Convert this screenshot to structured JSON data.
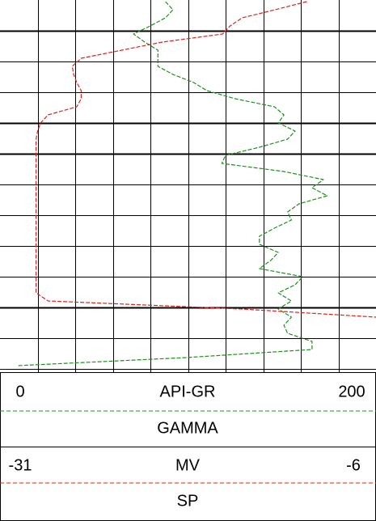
{
  "chart_data": {
    "type": "well-log",
    "series": [
      {
        "name": "GAMMA",
        "unit": "API-GR",
        "xlim": [
          0,
          200
        ],
        "color": "#1f8f1f",
        "values": [
          88,
          92,
          88,
          80,
          71,
          77,
          84,
          84,
          84,
          92,
          103,
          110,
          125,
          146,
          151,
          148,
          157,
          153,
          138,
          120,
          118,
          151,
          172,
          166,
          174,
          159,
          153,
          155,
          146,
          138,
          138,
          148,
          144,
          138,
          161,
          157,
          148,
          155,
          148,
          155,
          151,
          153,
          166,
          166,
          99,
          9
        ]
      },
      {
        "name": "SP",
        "unit": "MV",
        "xlim": [
          -31,
          -6
        ],
        "color": "#e02020",
        "values": [
          -10.6,
          -12.7,
          -14.9,
          -15.7,
          -16.2,
          -20.2,
          -22.9,
          -25.6,
          -26.2,
          -26.1,
          -25.9,
          -25.6,
          -25.6,
          -25.9,
          -27.8,
          -28.3,
          -28.5,
          -28.6,
          -28.6,
          -28.6,
          -28.6,
          -28.6,
          -28.6,
          -28.6,
          -28.6,
          -28.6,
          -28.6,
          -28.6,
          -28.6,
          -28.6,
          -28.6,
          -28.6,
          -28.6,
          -28.6,
          -28.6,
          -28.6,
          -28.6,
          -27.8,
          -14.9,
          -6
        ]
      }
    ]
  }
}
